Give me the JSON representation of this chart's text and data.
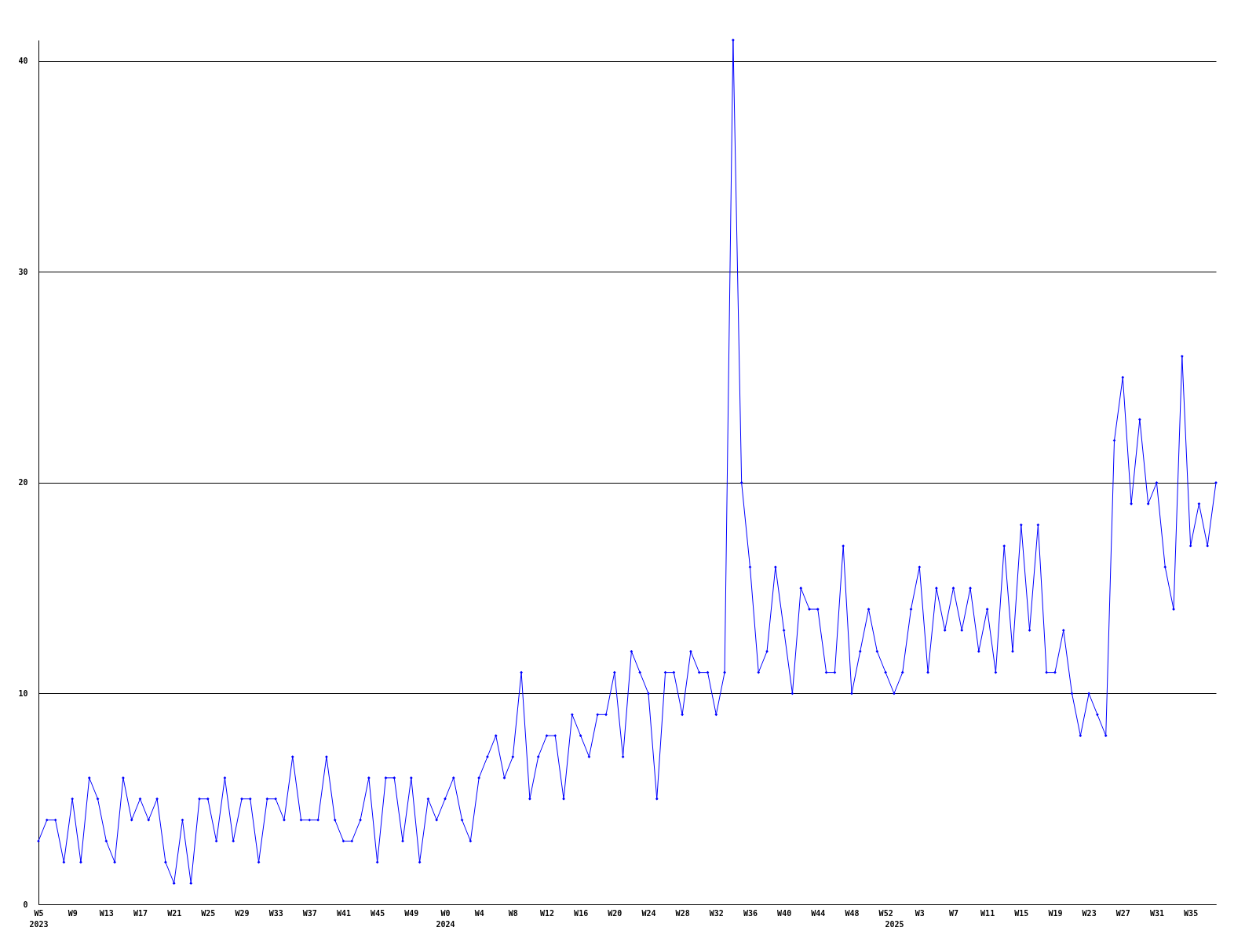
{
  "chart_data": {
    "type": "line",
    "categories": [
      "W5\n2023",
      null,
      null,
      null,
      "W9",
      null,
      null,
      null,
      "W13",
      null,
      null,
      null,
      "W17",
      null,
      null,
      null,
      "W21",
      null,
      null,
      null,
      "W25",
      null,
      null,
      null,
      "W29",
      null,
      null,
      null,
      "W33",
      null,
      null,
      null,
      "W37",
      null,
      null,
      null,
      "W41",
      null,
      null,
      null,
      "W45",
      null,
      null,
      null,
      "W49",
      null,
      null,
      null,
      "W0\n2024",
      null,
      null,
      null,
      "W4",
      null,
      null,
      null,
      "W8",
      null,
      null,
      null,
      "W12",
      null,
      null,
      null,
      "W16",
      null,
      null,
      null,
      "W20",
      null,
      null,
      null,
      "W24",
      null,
      null,
      null,
      "W28",
      null,
      null,
      null,
      "W32",
      null,
      null,
      null,
      "W36",
      null,
      null,
      null,
      "W40",
      null,
      null,
      null,
      "W44",
      null,
      null,
      null,
      "W48",
      null,
      null,
      null,
      "W52",
      "\n2025",
      null,
      null,
      "W3",
      null,
      null,
      null,
      "W7",
      null,
      null,
      null,
      "W11",
      null,
      null,
      null,
      "W15",
      null,
      null,
      null,
      "W19",
      null,
      null,
      null,
      "W23",
      null,
      null,
      null,
      "W27",
      null,
      null,
      null,
      "W31",
      null,
      null,
      null,
      "W35",
      null,
      null,
      null
    ],
    "series": [
      {
        "color": "#0000ff",
        "values": [
          3,
          4,
          4,
          2,
          5,
          2,
          6,
          5,
          3,
          2,
          6,
          4,
          5,
          4,
          5,
          2,
          1,
          4,
          1,
          5,
          5,
          3,
          6,
          3,
          5,
          5,
          2,
          5,
          5,
          4,
          7,
          4,
          4,
          4,
          7,
          4,
          3,
          3,
          4,
          6,
          2,
          6,
          6,
          3,
          6,
          2,
          5,
          4,
          5,
          6,
          4,
          3,
          6,
          7,
          8,
          6,
          7,
          11,
          5,
          7,
          8,
          8,
          5,
          9,
          8,
          7,
          9,
          9,
          11,
          7,
          12,
          11,
          10,
          5,
          11,
          11,
          9,
          12,
          11,
          11,
          9,
          11,
          41,
          20,
          16,
          11,
          12,
          16,
          13,
          10,
          15,
          14,
          14,
          11,
          11,
          17,
          10,
          12,
          14,
          12,
          11,
          10,
          11,
          14,
          16,
          11,
          15,
          13,
          15,
          13,
          15,
          12,
          14,
          11,
          17,
          12,
          18,
          13,
          18,
          11,
          11,
          13,
          10,
          8,
          10,
          9,
          8,
          22,
          25,
          19,
          23,
          19,
          20,
          16,
          14,
          26,
          17,
          19,
          17,
          20
        ]
      }
    ],
    "ylim": [
      0,
      41
    ],
    "yticks": [
      0,
      10,
      20,
      30,
      40
    ],
    "grid": "y",
    "marker": "diamond",
    "line_style": "solid"
  }
}
